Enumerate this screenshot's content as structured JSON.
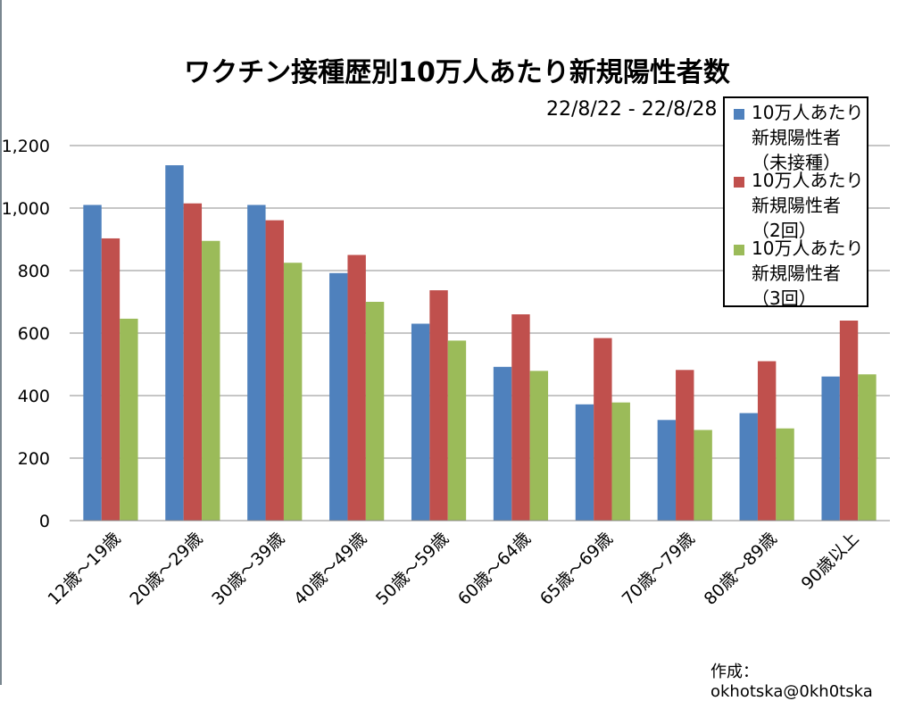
{
  "chart_data": {
    "type": "bar",
    "title": "ワクチン接種歴別10万人あたり新規陽性者数",
    "subtitle": "22/8/22 - 22/8/28",
    "categories": [
      "12歳～19歳",
      "20歳～29歳",
      "30歳～39歳",
      "40歳～49歳",
      "50歳～59歳",
      "60歳～64歳",
      "65歳～69歳",
      "70歳～79歳",
      "80歳～89歳",
      "90歳以上"
    ],
    "series": [
      {
        "name": "10万人あたり\n新規陽性者\n（未接種）",
        "color": "#4f81bd",
        "values": [
          1010,
          1137,
          1010,
          792,
          630,
          492,
          372,
          322,
          344,
          461
        ]
      },
      {
        "name": "10万人あたり\n新規陽性者\n（2回）",
        "color": "#c0504d",
        "values": [
          903,
          1015,
          961,
          850,
          737,
          660,
          584,
          482,
          510,
          640
        ]
      },
      {
        "name": "10万人あたり\n新規陽性者\n（3回）",
        "color": "#9bbb59",
        "values": [
          646,
          895,
          825,
          700,
          576,
          479,
          378,
          290,
          295,
          468
        ]
      }
    ],
    "y_ticks": [
      "0",
      "200",
      "400",
      "600",
      "800",
      "1,000",
      "1,200"
    ],
    "ylim": [
      0,
      1200
    ],
    "grid": true,
    "legend_position": "top-right",
    "xlabel": "",
    "ylabel": ""
  },
  "credit": "作成：okhotska@0kh0tska"
}
